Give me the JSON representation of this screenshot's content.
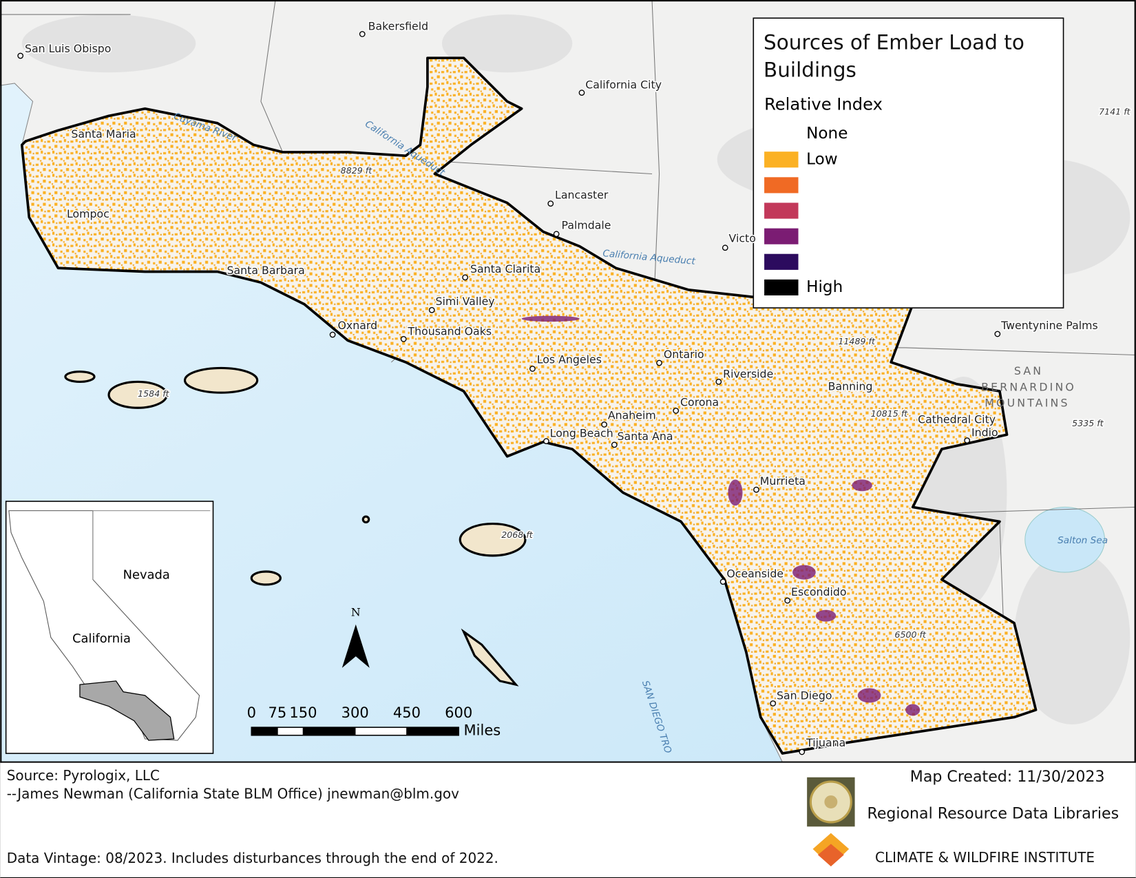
{
  "map": {
    "title": "Sources of Ember Load to Buildings",
    "legend": {
      "subtitle": "Relative Index",
      "items": [
        {
          "label": "None",
          "color": "#ffffff"
        },
        {
          "label": "Low",
          "color": "#fbb124"
        },
        {
          "color": "#f06a24"
        },
        {
          "color": "#c2385a"
        },
        {
          "color": "#7b1c73"
        },
        {
          "color": "#2c0b5e"
        },
        {
          "label": "High",
          "color": "#000000"
        }
      ]
    },
    "places": [
      "Bakersfield",
      "San Luis Obispo",
      "California City",
      "Santa Maria",
      "Lompoc",
      "Lancaster",
      "Palmdale",
      "Santa Barbara",
      "Santa Clarita",
      "Simi Valley",
      "Oxnard",
      "Thousand Oaks",
      "Los Angeles",
      "Ontario",
      "Riverside",
      "Banning",
      "Corona",
      "Anaheim",
      "Long Beach",
      "Santa Ana",
      "Cathedral City",
      "Indio",
      "Twentynine Palms",
      "Murrieta",
      "Oceanside",
      "Escondido",
      "San Diego",
      "Tijuana",
      "Victo"
    ],
    "elevations": [
      "8829 ft",
      "1584 ft",
      "11489 ft",
      "10815 ft",
      "5335 ft",
      "7141 ft",
      "2068 ft",
      "6500 ft"
    ],
    "features": [
      "Cuyama River",
      "California Aqueduct",
      "California Aqueduct",
      "Salton Sea",
      "SAN DIEGO TRO"
    ],
    "mountains": [
      "SAN",
      "BERNARDINO",
      "MOUNTAINS"
    ],
    "inset": {
      "labels": [
        "Nevada",
        "California"
      ]
    },
    "north_arrow": "N",
    "scale_bar": {
      "ticks": [
        0,
        75,
        150,
        300,
        450,
        600
      ],
      "unit": "Miles"
    },
    "footer": {
      "source": "Source:  Pyrologix, LLC",
      "contact": "--James Newman (California State BLM Office) jnewman@blm.gov",
      "vintage": "Data Vintage:  08/2023. Includes disturbances through the end of 2022.",
      "created": "Map Created: 11/30/2023",
      "org1": "Regional Resource Data Libraries",
      "org2": "CLIMATE & WILDFIRE INSTITUTE"
    }
  }
}
